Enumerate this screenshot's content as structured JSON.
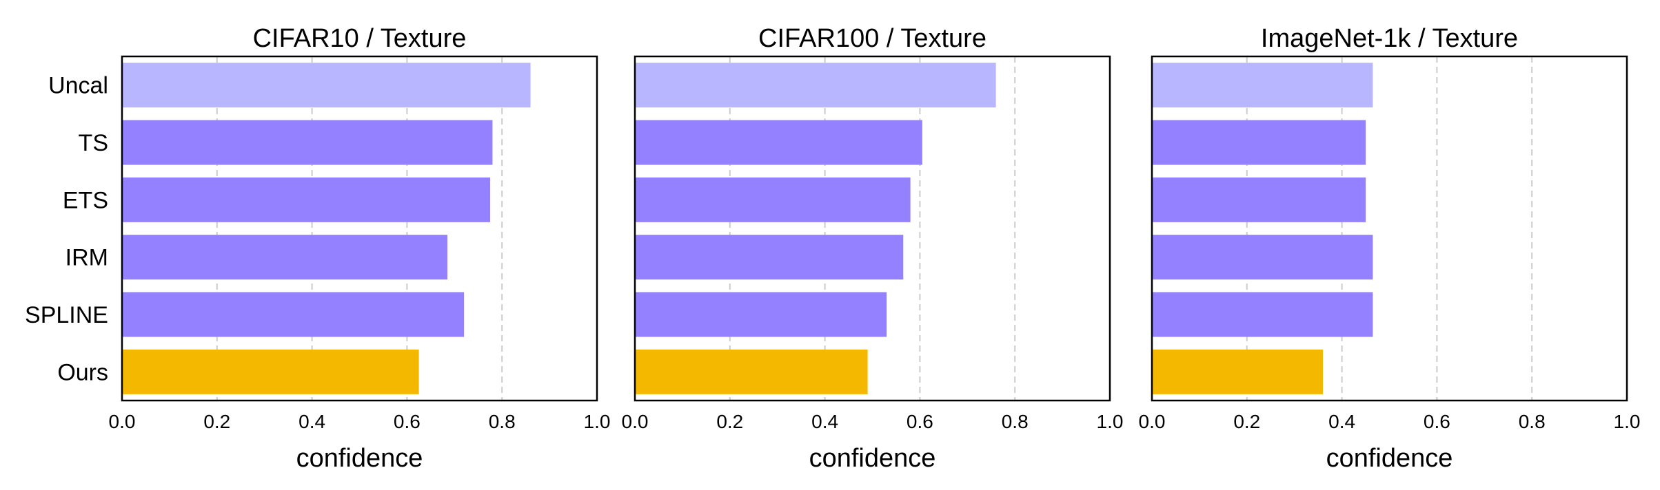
{
  "colors": {
    "uncal": "#b7b6fe",
    "baseline": "#9381ff",
    "ours": "#f5b800",
    "grid": "#cccccc",
    "frame": "#000000"
  },
  "chart_data": [
    {
      "type": "bar",
      "orientation": "horizontal",
      "title": "CIFAR10 / Texture",
      "xlabel": "confidence",
      "ylabel": "",
      "xlim": [
        0,
        1
      ],
      "xticks": [
        "0.0",
        "0.2",
        "0.4",
        "0.6",
        "0.8",
        "1.0"
      ],
      "grid": "vertical dashed",
      "show_categories": true,
      "categories": [
        "Uncal",
        "TS",
        "ETS",
        "IRM",
        "SPLINE",
        "Ours"
      ],
      "values": [
        0.86,
        0.78,
        0.775,
        0.685,
        0.72,
        0.625
      ]
    },
    {
      "type": "bar",
      "orientation": "horizontal",
      "title": "CIFAR100 / Texture",
      "xlabel": "confidence",
      "ylabel": "",
      "xlim": [
        0,
        1
      ],
      "xticks": [
        "0.0",
        "0.2",
        "0.4",
        "0.6",
        "0.8",
        "1.0"
      ],
      "grid": "vertical dashed",
      "show_categories": false,
      "categories": [
        "Uncal",
        "TS",
        "ETS",
        "IRM",
        "SPLINE",
        "Ours"
      ],
      "values": [
        0.76,
        0.605,
        0.58,
        0.565,
        0.53,
        0.49
      ]
    },
    {
      "type": "bar",
      "orientation": "horizontal",
      "title": "ImageNet-1k / Texture",
      "xlabel": "confidence",
      "ylabel": "",
      "xlim": [
        0,
        1
      ],
      "xticks": [
        "0.0",
        "0.2",
        "0.4",
        "0.6",
        "0.8",
        "1.0"
      ],
      "grid": "vertical dashed",
      "show_categories": false,
      "categories": [
        "Uncal",
        "TS",
        "ETS",
        "IRM",
        "SPLINE",
        "Ours"
      ],
      "values": [
        0.465,
        0.45,
        0.45,
        0.465,
        0.465,
        0.36
      ]
    }
  ]
}
